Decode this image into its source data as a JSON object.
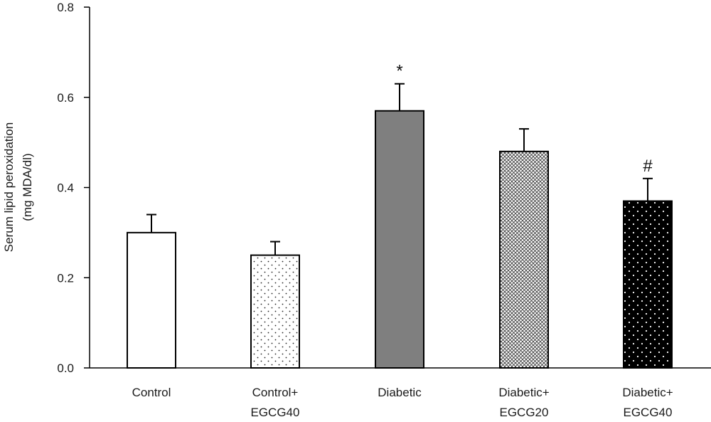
{
  "chart_data": {
    "type": "bar",
    "categories": [
      [
        "Control"
      ],
      [
        "Control+",
        "EGCG40"
      ],
      [
        "Diabetic"
      ],
      [
        "Diabetic+",
        "EGCG20"
      ],
      [
        "Diabetic+",
        "EGCG40"
      ]
    ],
    "values": [
      0.3,
      0.25,
      0.57,
      0.48,
      0.37
    ],
    "errors": [
      0.04,
      0.03,
      0.06,
      0.05,
      0.05
    ],
    "annotations": [
      "",
      "",
      "*",
      "",
      "#"
    ],
    "fills": [
      "white",
      "sparse-dots",
      "gray",
      "crosshatch",
      "black-dots"
    ],
    "ylabel_line1": "Serum lipid peroxidation",
    "ylabel_line2": "(mg MDA/dl)",
    "ylim": [
      0,
      0.8
    ],
    "yticks": [
      "0.0",
      "0.2",
      "0.4",
      "0.6",
      "0.8"
    ],
    "ytick_values": [
      0,
      0.2,
      0.4,
      0.6,
      0.8
    ],
    "grid": false,
    "legend": "none",
    "colors": {
      "axis": "#000000",
      "gray_bar": "#7f7f7f",
      "black_bar": "#000000"
    }
  }
}
